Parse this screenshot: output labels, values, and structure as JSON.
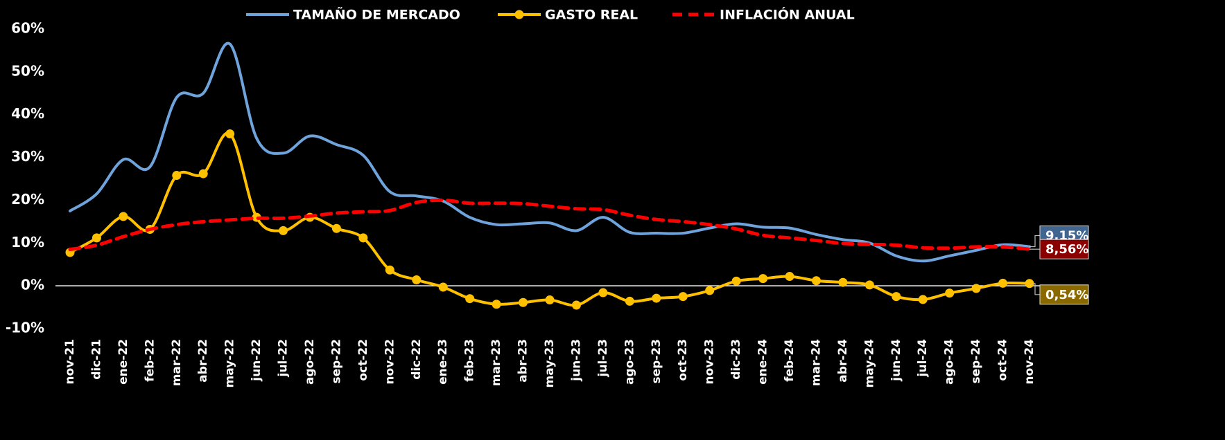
{
  "chart_data": {
    "type": "line",
    "categories": [
      "nov-21",
      "dic-21",
      "ene-22",
      "feb-22",
      "mar-22",
      "abr-22",
      "may-22",
      "jun-22",
      "jul-22",
      "ago-22",
      "sep-22",
      "oct-22",
      "nov-22",
      "dic-22",
      "ene-23",
      "feb-23",
      "mar-23",
      "abr-23",
      "may-23",
      "jun-23",
      "jul-23",
      "ago-23",
      "sep-23",
      "oct-23",
      "nov-23",
      "dic-23",
      "ene-24",
      "feb-24",
      "mar-24",
      "abr-24",
      "may-24",
      "jun-24",
      "jul-24",
      "ago-24",
      "sep-24",
      "oct-24",
      "nov-24"
    ],
    "series": [
      {
        "name": "TAMAÑO DE MERCADO",
        "color": "#6fa3dc",
        "style": "solid",
        "markers": false,
        "label_color": "#3f6590",
        "values": [
          17.5,
          21.5,
          29.5,
          27.8,
          44,
          45,
          56.5,
          34.5,
          31,
          35,
          33,
          30.5,
          22,
          21,
          19.8,
          16,
          14.3,
          14.5,
          14.7,
          12.9,
          16,
          12.5,
          12.3,
          12.3,
          13.5,
          14.5,
          13.7,
          13.5,
          12,
          10.8,
          10,
          7,
          5.8,
          7,
          8.3,
          9.6,
          9.15
        ],
        "value_labels": [
          null,
          null,
          null,
          null,
          null,
          null,
          null,
          null,
          null,
          null,
          null,
          null,
          null,
          null,
          null,
          null,
          null,
          null,
          null,
          null,
          null,
          null,
          null,
          null,
          null,
          null,
          null,
          null,
          null,
          null,
          null,
          null,
          null,
          null,
          null,
          null,
          "9,15%"
        ]
      },
      {
        "name": "GASTO REAL",
        "color": "#ffc000",
        "style": "solid",
        "markers": true,
        "label_color": "#8a6a00",
        "values": [
          7.8,
          11.2,
          16.2,
          13.2,
          25.8,
          26.2,
          35.5,
          16,
          12.9,
          16,
          13.4,
          11.2,
          3.7,
          1.4,
          -0.3,
          -3,
          -4.3,
          -3.9,
          -3.3,
          -4.5,
          -1.6,
          -3.6,
          -2.9,
          -2.5,
          -1.1,
          1.1,
          1.7,
          2.2,
          1.2,
          0.8,
          0.2,
          -2.5,
          -3.2,
          -1.7,
          -0.6,
          0.6,
          0.54
        ],
        "value_labels": [
          null,
          null,
          null,
          null,
          null,
          null,
          null,
          null,
          null,
          null,
          null,
          null,
          null,
          null,
          null,
          null,
          null,
          null,
          null,
          null,
          null,
          null,
          null,
          null,
          null,
          null,
          null,
          null,
          null,
          null,
          null,
          null,
          null,
          null,
          null,
          null,
          "0,54%"
        ]
      },
      {
        "name": "INFLACIÓN ANUAL",
        "color": "#ff0000",
        "style": "dashed",
        "markers": false,
        "label_color": "#8b0000",
        "values": [
          8.5,
          9.5,
          11.5,
          13.2,
          14.3,
          15,
          15.4,
          15.8,
          15.8,
          16.3,
          17,
          17.3,
          17.6,
          19.5,
          20,
          19.3,
          19.3,
          19.2,
          18.6,
          18,
          17.8,
          16.5,
          15.5,
          15,
          14.3,
          13.3,
          11.8,
          11.2,
          10.6,
          9.9,
          9.7,
          9.5,
          8.9,
          8.8,
          9.1,
          9.1,
          8.56
        ],
        "value_labels": [
          null,
          null,
          null,
          null,
          null,
          null,
          null,
          null,
          null,
          null,
          null,
          null,
          null,
          null,
          null,
          null,
          null,
          null,
          null,
          null,
          null,
          null,
          null,
          null,
          null,
          null,
          null,
          null,
          null,
          null,
          null,
          null,
          null,
          null,
          null,
          null,
          "8,56%"
        ]
      }
    ],
    "ylim": [
      -10,
      60
    ],
    "yticks": [
      {
        "value": -10,
        "label": "-10%"
      },
      {
        "value": 0,
        "label": "0%"
      },
      {
        "value": 10,
        "label": "10%"
      },
      {
        "value": 20,
        "label": "20%"
      },
      {
        "value": 30,
        "label": "30%"
      },
      {
        "value": 40,
        "label": "40%"
      },
      {
        "value": 50,
        "label": "50%"
      },
      {
        "value": 60,
        "label": "60%"
      }
    ],
    "legend": "top"
  }
}
